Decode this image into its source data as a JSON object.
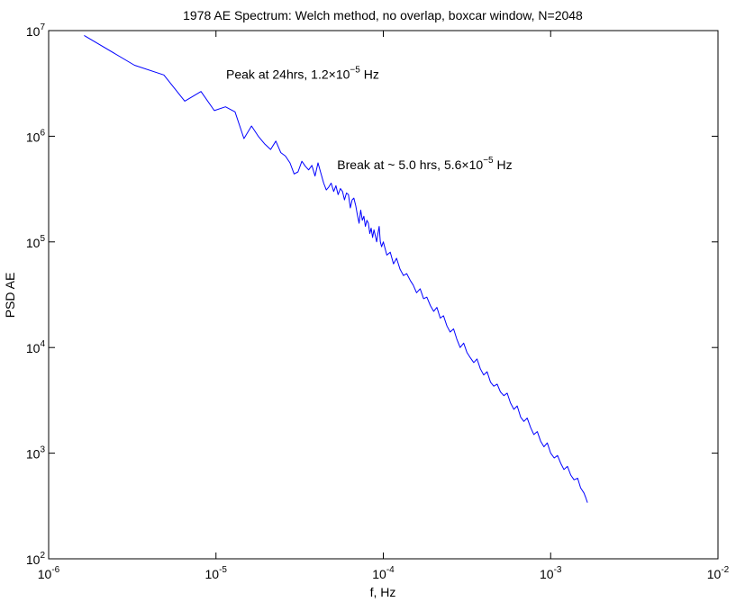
{
  "chart_data": {
    "type": "line",
    "title": "1978 AE Spectrum: Welch method, no overlap, boxcar window, N=2048",
    "xlabel": "f, Hz",
    "ylabel": "PSD AE",
    "xscale": "log",
    "yscale": "log",
    "xlim": [
      1e-06,
      0.01
    ],
    "ylim": [
      100,
      10000000
    ],
    "grid": false,
    "line_color": "#0000ff",
    "xticks": [
      {
        "value": 1e-06,
        "base": "10",
        "exp": "-6"
      },
      {
        "value": 1e-05,
        "base": "10",
        "exp": "-5"
      },
      {
        "value": 0.0001,
        "base": "10",
        "exp": "-4"
      },
      {
        "value": 0.001,
        "base": "10",
        "exp": "-3"
      },
      {
        "value": 0.01,
        "base": "10",
        "exp": "-2"
      }
    ],
    "yticks": [
      {
        "value": 100,
        "base": "10",
        "exp": "2"
      },
      {
        "value": 1000,
        "base": "10",
        "exp": "3"
      },
      {
        "value": 10000,
        "base": "10",
        "exp": "4"
      },
      {
        "value": 100000,
        "base": "10",
        "exp": "5"
      },
      {
        "value": 1000000,
        "base": "10",
        "exp": "6"
      },
      {
        "value": 10000000,
        "base": "10",
        "exp": "7"
      }
    ],
    "annotations": [
      {
        "name": "peak-annotation",
        "x": 1.15e-05,
        "y": 3500000,
        "pre": "Peak at 24hrs, 1.2",
        "times": "×",
        "base": "10",
        "exp": "−5",
        "post": " Hz"
      },
      {
        "name": "break-annotation",
        "x": 5.3e-05,
        "y": 490000,
        "pre": "Break at ~ 5.0 hrs, 5.6",
        "times": "×",
        "base": "10",
        "exp": "−5",
        "post": " Hz"
      }
    ],
    "series": [
      {
        "points": [
          [
            1.63e-06,
            9000000
          ],
          [
            3.26e-06,
            4700000
          ],
          [
            4.88e-06,
            3800000
          ],
          [
            6.51e-06,
            2150000
          ],
          [
            8.14e-06,
            2650000
          ],
          [
            9.77e-06,
            1750000
          ],
          [
            1.14e-05,
            1900000
          ],
          [
            1.3e-05,
            1700000
          ],
          [
            1.47e-05,
            950000
          ],
          [
            1.63e-05,
            1250000
          ],
          [
            1.79e-05,
            1000000
          ],
          [
            1.95e-05,
            850000
          ],
          [
            2.12e-05,
            750000
          ],
          [
            2.28e-05,
            900000
          ],
          [
            2.44e-05,
            700000
          ],
          [
            2.6e-05,
            650000
          ],
          [
            2.77e-05,
            560000
          ],
          [
            2.93e-05,
            440000
          ],
          [
            3.09e-05,
            460000
          ],
          [
            3.26e-05,
            580000
          ],
          [
            3.42e-05,
            520000
          ],
          [
            3.58e-05,
            480000
          ],
          [
            3.74e-05,
            530000
          ],
          [
            3.91e-05,
            420000
          ],
          [
            4.07e-05,
            560000
          ],
          [
            4.23e-05,
            450000
          ],
          [
            4.4e-05,
            360000
          ],
          [
            4.56e-05,
            310000
          ],
          [
            4.72e-05,
            330000
          ],
          [
            4.88e-05,
            360000
          ],
          [
            5.05e-05,
            300000
          ],
          [
            5.21e-05,
            340000
          ],
          [
            5.37e-05,
            280000
          ],
          [
            5.54e-05,
            320000
          ],
          [
            5.7e-05,
            300000
          ],
          [
            5.86e-05,
            250000
          ],
          [
            6.02e-05,
            290000
          ],
          [
            6.19e-05,
            280000
          ],
          [
            6.35e-05,
            210000
          ],
          [
            6.51e-05,
            250000
          ],
          [
            6.67e-05,
            260000
          ],
          [
            6.84e-05,
            220000
          ],
          [
            7e-05,
            180000
          ],
          [
            7.16e-05,
            150000
          ],
          [
            7.33e-05,
            200000
          ],
          [
            7.49e-05,
            160000
          ],
          [
            7.65e-05,
            175000
          ],
          [
            7.81e-05,
            140000
          ],
          [
            7.98e-05,
            160000
          ],
          [
            8.14e-05,
            150000
          ],
          [
            8.3e-05,
            120000
          ],
          [
            8.46e-05,
            135000
          ],
          [
            8.63e-05,
            110000
          ],
          [
            8.79e-05,
            130000
          ],
          [
            8.95e-05,
            115000
          ],
          [
            9.12e-05,
            100000
          ],
          [
            9.28e-05,
            120000
          ],
          [
            9.44e-05,
            140000
          ],
          [
            9.6e-05,
            100000
          ],
          [
            9.77e-05,
            90000
          ],
          [
            0.0001,
            100000
          ],
          [
            0.000105,
            75000
          ],
          [
            0.00011,
            80000
          ],
          [
            0.000115,
            62000
          ],
          [
            0.00012,
            70000
          ],
          [
            0.000126,
            55000
          ],
          [
            0.000132,
            48000
          ],
          [
            0.000138,
            50000
          ],
          [
            0.000145,
            43000
          ],
          [
            0.000151,
            39000
          ],
          [
            0.000158,
            33000
          ],
          [
            0.000166,
            36000
          ],
          [
            0.000174,
            29000
          ],
          [
            0.000182,
            30000
          ],
          [
            0.000191,
            25000
          ],
          [
            0.0002,
            22000
          ],
          [
            0.000209,
            24000
          ],
          [
            0.000219,
            19000
          ],
          [
            0.000229,
            20000
          ],
          [
            0.00024,
            16000
          ],
          [
            0.000251,
            14000
          ],
          [
            0.000263,
            15000
          ],
          [
            0.000275,
            12000
          ],
          [
            0.000288,
            10000
          ],
          [
            0.000302,
            11000
          ],
          [
            0.000316,
            9000
          ],
          [
            0.000331,
            8000
          ],
          [
            0.000347,
            7200
          ],
          [
            0.000363,
            7800
          ],
          [
            0.00038,
            6300
          ],
          [
            0.000398,
            5500
          ],
          [
            0.000417,
            5900
          ],
          [
            0.000437,
            4700
          ],
          [
            0.000457,
            4300
          ],
          [
            0.000479,
            4500
          ],
          [
            0.000501,
            3800
          ],
          [
            0.000525,
            3500
          ],
          [
            0.00055,
            3700
          ],
          [
            0.000575,
            3000
          ],
          [
            0.000603,
            2600
          ],
          [
            0.000631,
            2800
          ],
          [
            0.000661,
            2200
          ],
          [
            0.000692,
            2000
          ],
          [
            0.000724,
            2150
          ],
          [
            0.000759,
            1750
          ],
          [
            0.000794,
            1500
          ],
          [
            0.000832,
            1600
          ],
          [
            0.000871,
            1300
          ],
          [
            0.000912,
            1150
          ],
          [
            0.000955,
            1250
          ],
          [
            0.001,
            1000
          ],
          [
            0.00105,
            900
          ],
          [
            0.0011,
            950
          ],
          [
            0.00115,
            800
          ],
          [
            0.0012,
            700
          ],
          [
            0.00126,
            750
          ],
          [
            0.00132,
            620
          ],
          [
            0.00138,
            560
          ],
          [
            0.00145,
            580
          ],
          [
            0.00151,
            470
          ],
          [
            0.00158,
            420
          ],
          [
            0.00162,
            380
          ],
          [
            0.00166,
            340
          ]
        ]
      }
    ]
  }
}
